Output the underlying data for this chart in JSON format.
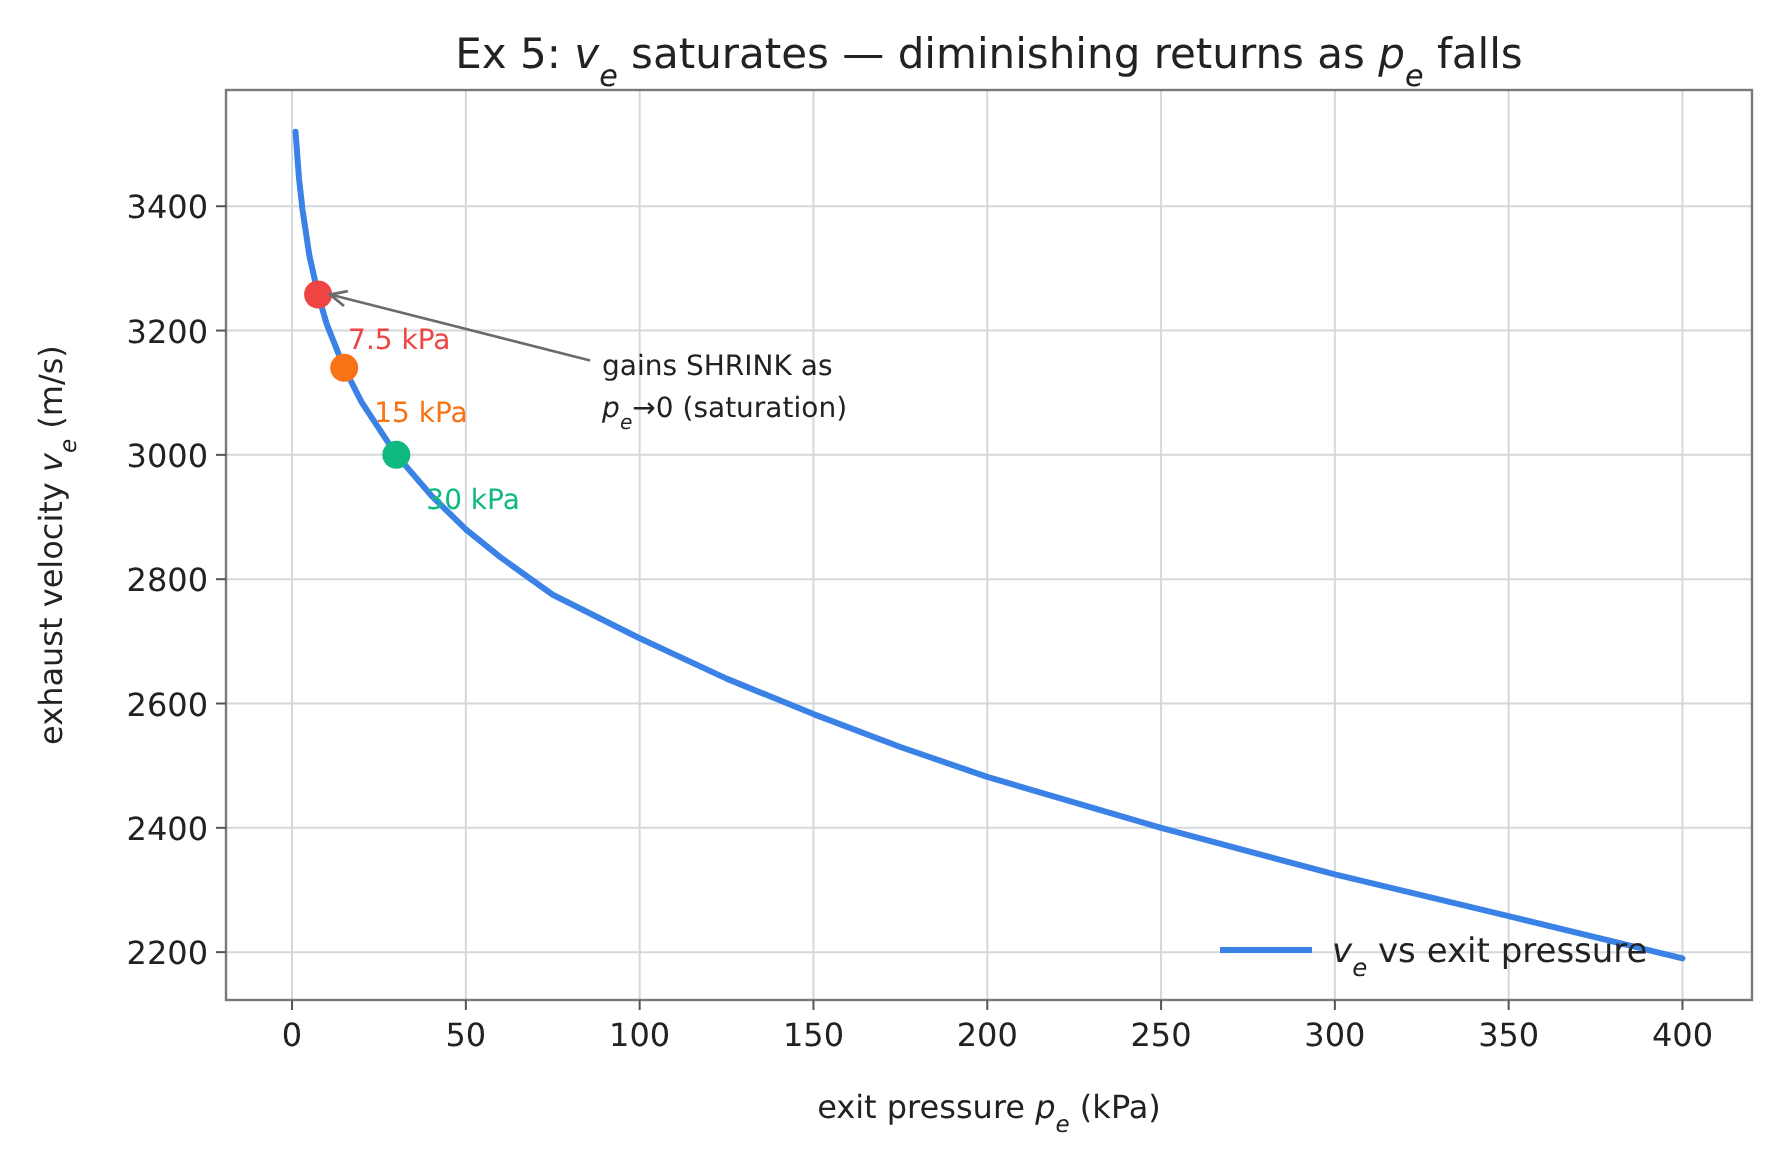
{
  "chart_data": {
    "type": "line",
    "title": "Ex 5: v$_{e}$ saturates — diminishing returns as p$_{e}$ falls",
    "xlabel": "exit pressure  p$_{e}$  (kPa)",
    "ylabel": "exhaust velocity  v$_{e}$  (m/s)",
    "xlim": [
      -19,
      420
    ],
    "ylim": [
      2123,
      3587
    ],
    "xticks": [
      0,
      50,
      100,
      150,
      200,
      250,
      300,
      350,
      400
    ],
    "yticks": [
      2200,
      2400,
      2600,
      2800,
      3000,
      3200,
      3400
    ],
    "grid": true,
    "legend": "bottom right",
    "series": [
      {
        "name": "v$_{e}$ vs exit pressure",
        "color": "#3b82e6",
        "line_style": "solid",
        "x": [
          1,
          2,
          3,
          5,
          7.5,
          10,
          15,
          20,
          30,
          40,
          50,
          60,
          75,
          100,
          125,
          150,
          175,
          200,
          250,
          300,
          350,
          400
        ],
        "values": [
          3520,
          3445,
          3395,
          3320,
          3258,
          3210,
          3140,
          3085,
          3000,
          2935,
          2880,
          2835,
          2775,
          2705,
          2640,
          2583,
          2530,
          2482,
          2400,
          2325,
          2258,
          2190
        ]
      },
      {
        "type": "scatter",
        "marker": "circle",
        "x": [
          7.5,
          15,
          30
        ],
        "values": [
          3258,
          3140,
          3000
        ],
        "colors": [
          "#ef4444",
          "#f97316",
          "#10b981"
        ]
      }
    ],
    "annotations": [
      {
        "text": "gains SHRINK as\np$_{e}$→0 (saturation)",
        "x": 7.5,
        "y": 3258
      },
      {
        "text": "7.5 kPa",
        "x": 7.5,
        "y": 3258
      },
      {
        "text": "15 kPa",
        "x": 15,
        "y": 3140
      },
      {
        "text": "30 kPa",
        "x": 30,
        "y": 3000
      }
    ]
  }
}
